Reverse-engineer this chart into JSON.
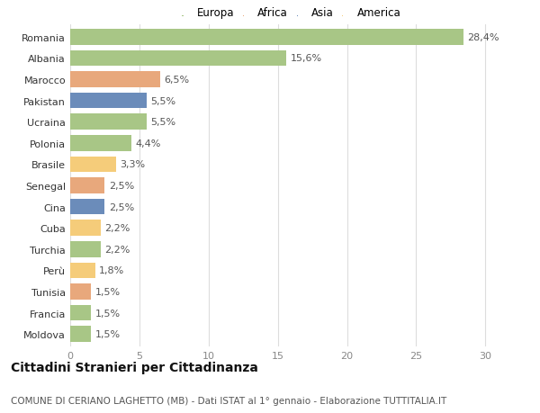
{
  "countries": [
    "Romania",
    "Albania",
    "Marocco",
    "Pakistan",
    "Ucraina",
    "Polonia",
    "Brasile",
    "Senegal",
    "Cina",
    "Cuba",
    "Turchia",
    "Perù",
    "Tunisia",
    "Francia",
    "Moldova"
  ],
  "values": [
    28.4,
    15.6,
    6.5,
    5.5,
    5.5,
    4.4,
    3.3,
    2.5,
    2.5,
    2.2,
    2.2,
    1.8,
    1.5,
    1.5,
    1.5
  ],
  "labels": [
    "28,4%",
    "15,6%",
    "6,5%",
    "5,5%",
    "5,5%",
    "4,4%",
    "3,3%",
    "2,5%",
    "2,5%",
    "2,2%",
    "2,2%",
    "1,8%",
    "1,5%",
    "1,5%",
    "1,5%"
  ],
  "colors": [
    "#a8c686",
    "#a8c686",
    "#e8a87c",
    "#6b8cba",
    "#a8c686",
    "#a8c686",
    "#f5cc7a",
    "#e8a87c",
    "#6b8cba",
    "#f5cc7a",
    "#a8c686",
    "#f5cc7a",
    "#e8a87c",
    "#a8c686",
    "#a8c686"
  ],
  "legend_labels": [
    "Europa",
    "Africa",
    "Asia",
    "America"
  ],
  "legend_colors": [
    "#a8c686",
    "#e8a87c",
    "#6b8cba",
    "#f5cc7a"
  ],
  "title": "Cittadini Stranieri per Cittadinanza",
  "subtitle": "COMUNE DI CERIANO LAGHETTO (MB) - Dati ISTAT al 1° gennaio - Elaborazione TUTTITALIA.IT",
  "xlim": [
    0,
    32
  ],
  "xticks": [
    0,
    5,
    10,
    15,
    20,
    25,
    30
  ],
  "background_color": "#ffffff",
  "grid_color": "#dddddd",
  "bar_height": 0.75,
  "label_fontsize": 8,
  "tick_fontsize": 8,
  "title_fontsize": 10,
  "subtitle_fontsize": 7.5
}
